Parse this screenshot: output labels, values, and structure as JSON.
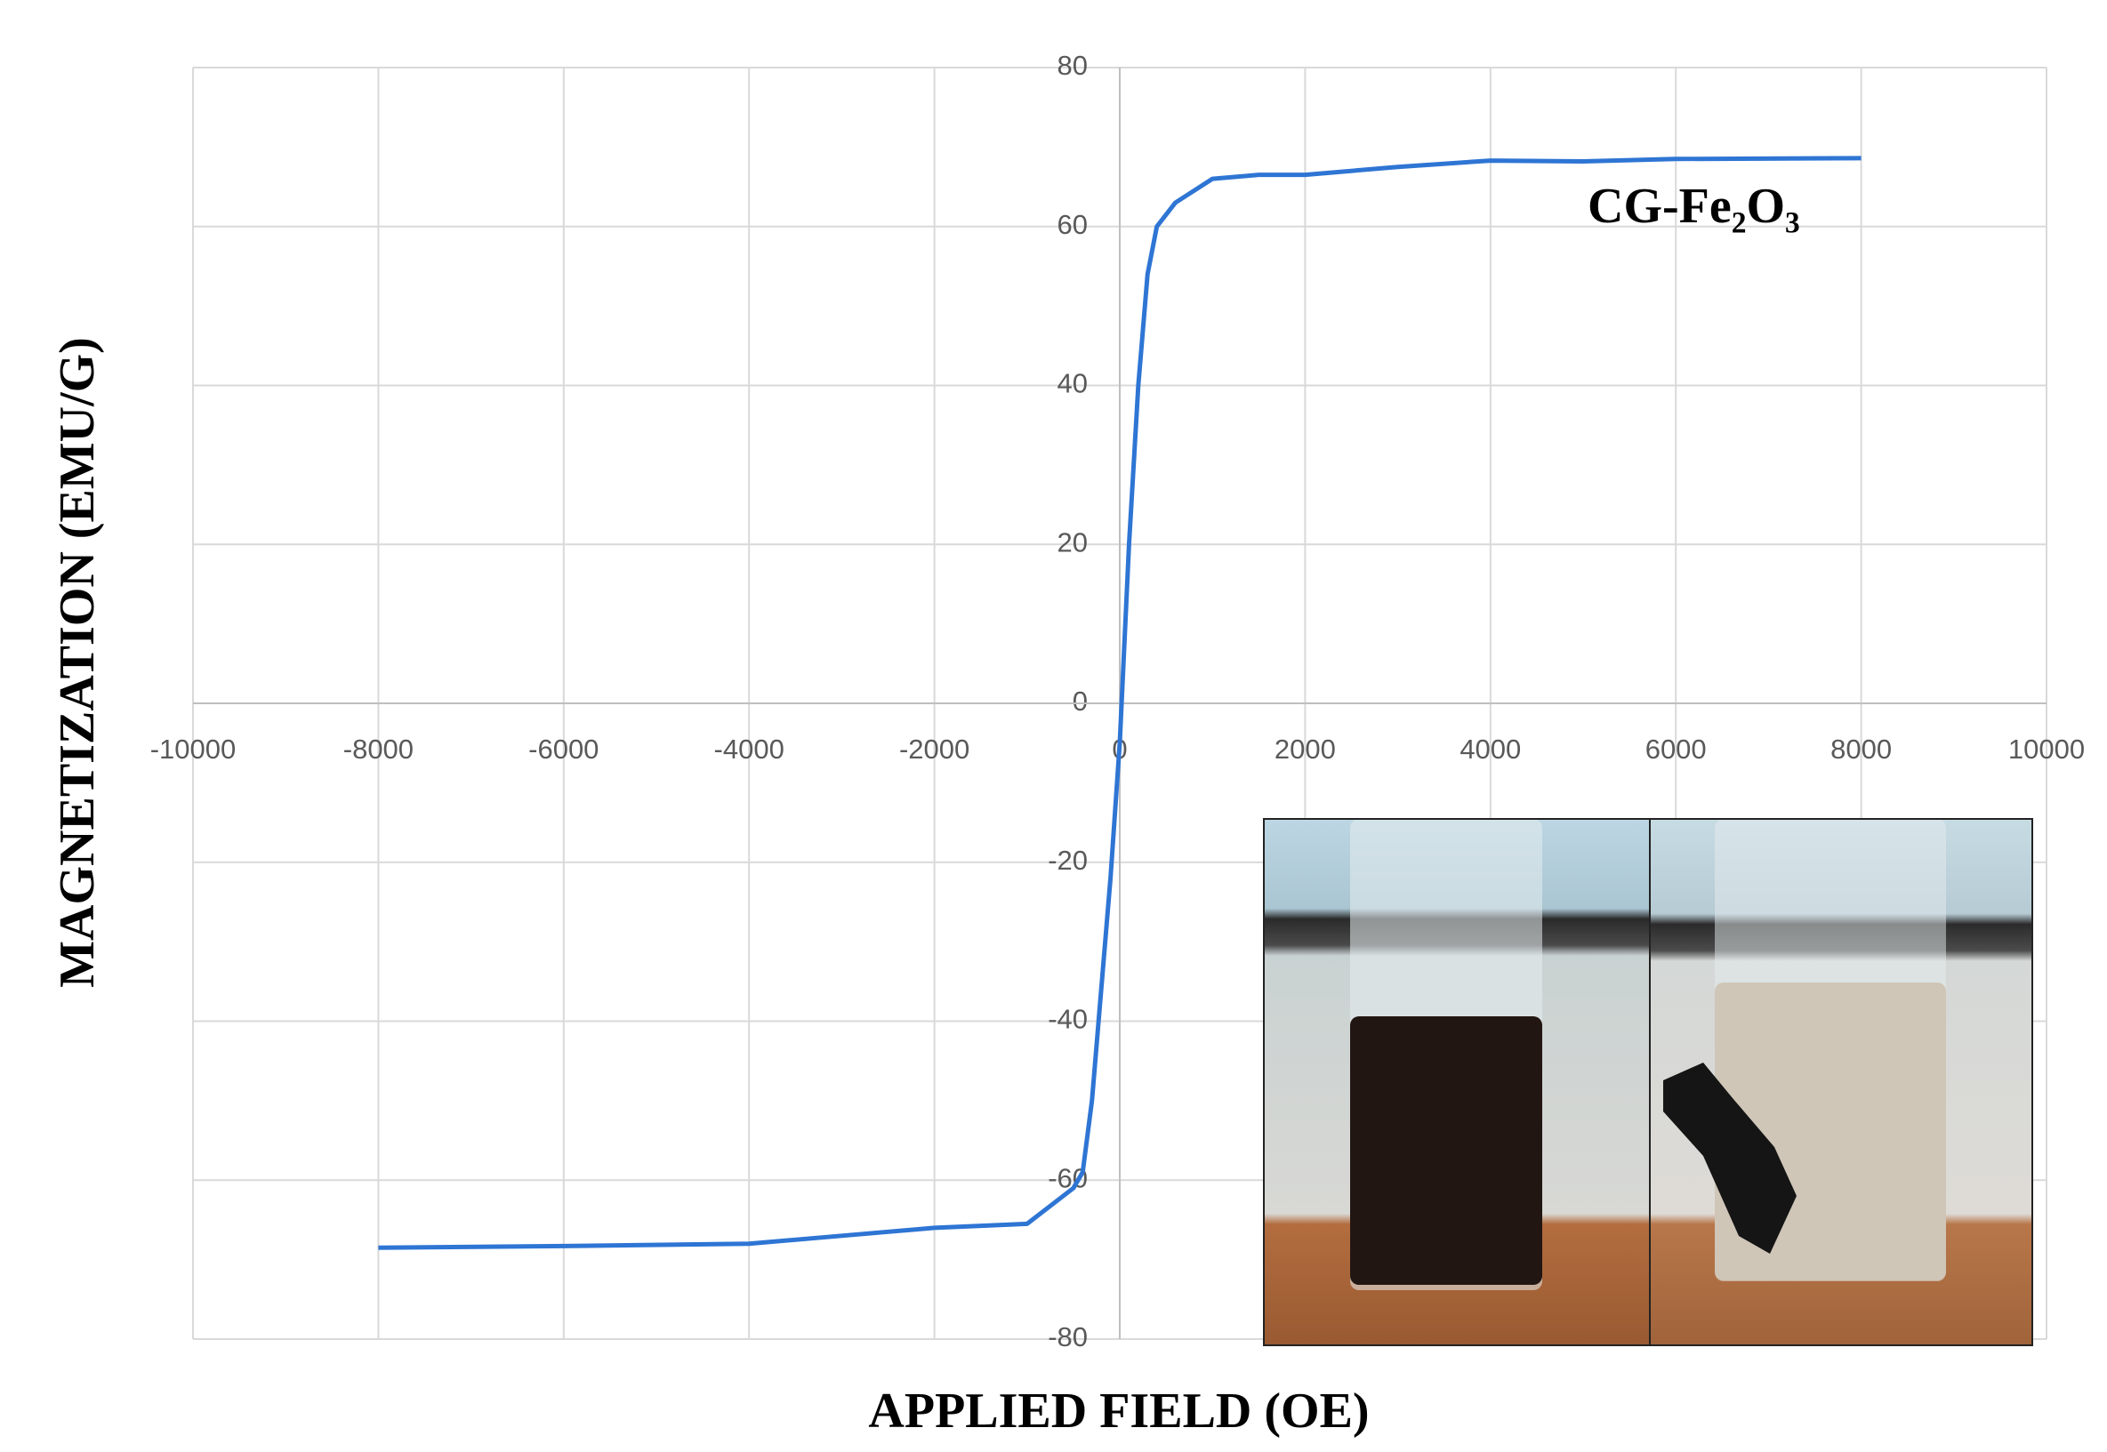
{
  "chart_data": {
    "type": "line",
    "x_label": "APPLIED FIELD (OE)",
    "y_label": "MAGNETIZATION (EMU/G)",
    "annotation": "CG-Fe₂O₃",
    "x": [
      -8000,
      -6000,
      -4000,
      -3000,
      -2000,
      -1000,
      -500,
      -400,
      -300,
      -200,
      -100,
      0,
      100,
      200,
      300,
      400,
      600,
      1000,
      1500,
      2000,
      3000,
      4000,
      5000,
      6000,
      8000
    ],
    "series": [
      {
        "name": "CG-Fe₂O₃",
        "color": "#2e75d4",
        "values": [
          -68.5,
          -68.3,
          -68,
          -67,
          -66,
          -65.5,
          -61,
          -59,
          -50,
          -36,
          -22,
          -5,
          20,
          40,
          54,
          60,
          63,
          66,
          66.5,
          66.5,
          67.5,
          68.3,
          68.2,
          68.5,
          68.6
        ]
      }
    ],
    "xlim": [
      -10000,
      10000
    ],
    "xticks": [
      -10000,
      -8000,
      -6000,
      -4000,
      -2000,
      0,
      2000,
      4000,
      6000,
      8000,
      10000
    ],
    "ylim": [
      -80,
      80
    ],
    "yticks": [
      -80,
      -60,
      -40,
      -20,
      0,
      20,
      40,
      60,
      80
    ],
    "grid": true
  }
}
